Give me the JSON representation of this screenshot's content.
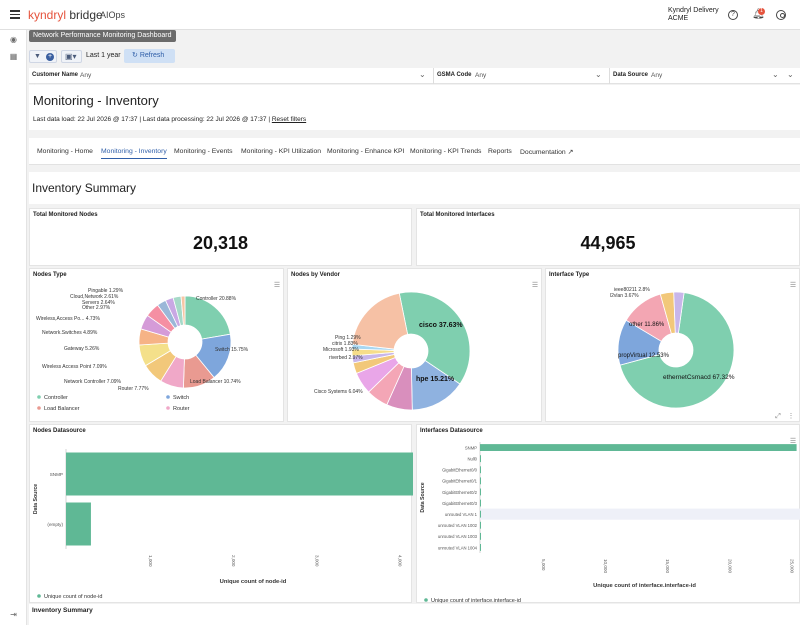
{
  "topbar": {
    "brand": "kyndryl bridge",
    "brand_accent": "kyndryl",
    "brand_rest": " bridge",
    "product": "AIOps",
    "account_line1": "Kyndryl Delivery",
    "account_line2": "ACME",
    "help_glyph": "?",
    "notification_count": "1",
    "icons": [
      "hamburger-icon",
      "help-icon",
      "bell-icon",
      "user-icon"
    ]
  },
  "rail": {
    "icons": [
      "eye-icon",
      "grid-icon",
      "collapse-icon"
    ]
  },
  "dashboard_chip": "Network Performance Monitoring Dashboard",
  "toolbar": {
    "time_range": "Last 1 year",
    "refresh_label": "Refresh"
  },
  "filters": [
    {
      "label": "Customer Name",
      "value": "Any"
    },
    {
      "label": "GSMA Code",
      "value": "Any"
    },
    {
      "label": "Data Source",
      "value": "Any"
    }
  ],
  "page": {
    "title": "Monitoring - Inventory",
    "info_prefix": "Last data load: 22 Jul 2026 @ 17:37 | Last data processing: 22 Jul 2026 @ 17:37 |",
    "reset_link": "Reset filters"
  },
  "tabs": [
    {
      "label": "Monitoring - Home",
      "active": false
    },
    {
      "label": "Monitoring - Inventory",
      "active": true
    },
    {
      "label": "Monitoring - Events",
      "active": false
    },
    {
      "label": "Monitoring - KPI Utilization",
      "active": false
    },
    {
      "label": "Monitoring - Enhance KPI",
      "active": false
    },
    {
      "label": "Monitoring - KPI Trends",
      "active": false
    },
    {
      "label": "Reports",
      "active": false
    },
    {
      "label": "Documentation ↗",
      "active": false
    }
  ],
  "summary_title": "Inventory Summary",
  "kpis": {
    "nodes": {
      "title": "Total Monitored Nodes",
      "value": "20,318"
    },
    "interfaces": {
      "title": "Total Monitored Interfaces",
      "value": "44,965"
    }
  },
  "colors": {
    "accent": "#2f5ea8",
    "bar": "#5fb895",
    "brand": "#e5533d"
  },
  "chart_data": [
    {
      "type": "pie",
      "title": "Nodes Type",
      "labels": [
        "Controller",
        "Switch",
        "Load Balancer",
        "Router",
        "Network Controller",
        "Wireless Access Point",
        "Gateway",
        "Network.Switches",
        "Wireless,Access Po...",
        "Other",
        "Servers",
        "Cloud,Network",
        "Pingable"
      ],
      "values": [
        20.88,
        15.75,
        10.74,
        7.77,
        7.09,
        7.09,
        5.26,
        4.89,
        4.73,
        2.97,
        2.64,
        2.61,
        1.29
      ],
      "label_texts": [
        "Controller  20.88%",
        "Switch  15.75%",
        "Load Balancer  10.74%",
        "Router  7.77%",
        "Network Controller  7.09%",
        "Wireless Access Point  7.09%",
        "Gateway  5.26%",
        "Network.Switches  4.89%",
        "Wireless,Access Po...  4.73%",
        "Other  2.97%",
        "Servers  2.64%",
        "Cloud,Network  2.61%",
        "Pingable  1.29%"
      ],
      "legend": [
        "Controller",
        "Switch",
        "Load Balancer",
        "Router"
      ]
    },
    {
      "type": "pie",
      "title": "Nodes by Vendor",
      "labels": [
        "cisco",
        "hpe",
        "Aruba",
        "f5",
        "Cisco Systems",
        "riverbed",
        "Microsoft",
        "citrix",
        "Ping",
        "other"
      ],
      "values": [
        37.63,
        15.21,
        7.08,
        6.03,
        6.04,
        2.97,
        1.93,
        1.83,
        1.29,
        20.0
      ],
      "label_texts": [
        "cisco  37.63%",
        "hpe  15.21%",
        "Aruba  7.08%",
        "f5  6.03%",
        "Cisco Systems  6.04%",
        "riverbed  2.97%",
        "Microsoft  1.93%",
        "citrix  1.83%",
        "Ping  1.29%"
      ]
    },
    {
      "type": "pie",
      "title": "Interface Type",
      "labels": [
        "ethernetCsmacd",
        "propVirtual",
        "other",
        "l2vlan",
        "ieee80211"
      ],
      "values": [
        67.32,
        12.53,
        11.86,
        3.67,
        2.8
      ],
      "label_texts": [
        "ethernetCsmacd  67.32%",
        "propVirtual  12.53%",
        "other  11.86%",
        "l2vlan  3.67%",
        "ieee80211  2.8%"
      ]
    },
    {
      "type": "bar",
      "orientation": "horizontal",
      "title": "Nodes Datasource",
      "categories": [
        "SNMP",
        "(empty)"
      ],
      "values": [
        4300,
        300
      ],
      "xlim": [
        0,
        4500
      ],
      "xticks": [
        "1,000",
        "2,000",
        "3,000",
        "4,000"
      ],
      "ylabel": "Data Source",
      "xlabel": "Unique count of node-id",
      "legend": "Unique count of node-id"
    },
    {
      "type": "bar",
      "orientation": "horizontal",
      "title": "Interfaces Datasource",
      "categories": [
        "SNMP",
        "Null0",
        "GigabitEthernet0/0",
        "GigabitEthernet0/1",
        "GigabitEthernet0/2",
        "GigabitEthernet0/3",
        "unrouted VLAN 1",
        "unrouted VLAN 1002",
        "unrouted VLAN 1003",
        "unrouted VLAN 1004"
      ],
      "values": [
        25500,
        60,
        50,
        45,
        45,
        40,
        40,
        35,
        35,
        35
      ],
      "xlim": [
        0,
        26500
      ],
      "xticks": [
        "5,000",
        "10,000",
        "15,000",
        "20,000",
        "25,000"
      ],
      "ylabel": "Data Source",
      "xlabel": "Unique count of interface.interface-id",
      "legend": "Unique count of interface.interface-id"
    }
  ],
  "footer_title": "Inventory Summary"
}
